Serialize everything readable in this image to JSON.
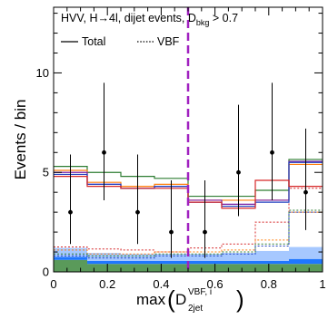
{
  "chart_data": {
    "type": "histogram",
    "annotation": {
      "line1": "HVV, H→4l, dijet events, D",
      "line1_sub": "bkg",
      "line1_tail": " > 0.7"
    },
    "legend": [
      {
        "label": "Total",
        "style": "solid"
      },
      {
        "label": "VBF",
        "style": "dotted"
      }
    ],
    "ylabel": "Events / bin",
    "xlabel": {
      "prefix": "max",
      "symbol": "D",
      "sub": "2jet",
      "sup": "VBF, i"
    },
    "xlim": [
      0,
      1
    ],
    "ylim": [
      0,
      13.3
    ],
    "x_ticks": [
      "0",
      "0.2",
      "0.4",
      "0.6",
      "0.8",
      "1"
    ],
    "y_ticks": [
      "0",
      "5",
      "10"
    ],
    "bin_edges": [
      0,
      0.125,
      0.25,
      0.375,
      0.5,
      0.625,
      0.75,
      0.875,
      1.0
    ],
    "stacked_fills": [
      {
        "color": "#5a9a5a",
        "values": [
          0.6,
          0.4,
          0.4,
          0.4,
          0.4,
          0.4,
          0.4,
          0.4
        ]
      },
      {
        "color": "#1f77ff",
        "values": [
          0.15,
          0.15,
          0.15,
          0.15,
          0.15,
          0.15,
          0.15,
          0.25
        ]
      },
      {
        "color": "#a6c8ff",
        "values": [
          0.45,
          0.4,
          0.35,
          0.35,
          0.35,
          0.4,
          0.5,
          0.6
        ]
      }
    ],
    "solid_lines": [
      {
        "color": "#2e7d32",
        "values": [
          5.3,
          5.0,
          4.8,
          4.7,
          3.8,
          3.8,
          4.1,
          5.65
        ]
      },
      {
        "color": "#ff7f0e",
        "values": [
          5.1,
          4.5,
          4.3,
          4.4,
          3.6,
          3.6,
          3.6,
          5.4
        ]
      },
      {
        "color": "#7b1fa2",
        "values": [
          5.0,
          4.4,
          4.2,
          4.3,
          3.6,
          3.4,
          3.6,
          5.55
        ]
      },
      {
        "color": "#1f3fbf",
        "values": [
          4.9,
          4.4,
          4.2,
          4.3,
          3.5,
          3.3,
          3.5,
          5.5
        ]
      },
      {
        "color": "#d62728",
        "values": [
          4.8,
          4.3,
          4.2,
          4.2,
          3.5,
          3.2,
          4.6,
          4.3
        ]
      }
    ],
    "dotted_lines": [
      {
        "color": "#d62728",
        "values": [
          1.25,
          1.15,
          1.1,
          1.0,
          1.2,
          1.4,
          2.5,
          4.2
        ]
      },
      {
        "color": "#ff7f0e",
        "values": [
          1.1,
          0.9,
          0.9,
          1.0,
          1.0,
          1.1,
          1.6,
          3.0
        ]
      },
      {
        "color": "#2e7d32",
        "values": [
          0.9,
          0.8,
          0.8,
          0.9,
          0.9,
          1.0,
          1.4,
          3.1
        ]
      },
      {
        "color": "#1f3fbf",
        "values": [
          0.8,
          0.7,
          0.7,
          0.8,
          0.8,
          0.9,
          1.3,
          3.0
        ]
      }
    ],
    "data_points": [
      {
        "x": 0.0625,
        "y": 3,
        "err_lo": 1.6,
        "err_hi": 2.9
      },
      {
        "x": 0.1875,
        "y": 6,
        "err_lo": 2.4,
        "err_hi": 3.5
      },
      {
        "x": 0.3125,
        "y": 3,
        "err_lo": 1.6,
        "err_hi": 2.9
      },
      {
        "x": 0.4375,
        "y": 2,
        "err_lo": 1.3,
        "err_hi": 2.6
      },
      {
        "x": 0.5625,
        "y": 2,
        "err_lo": 1.3,
        "err_hi": 2.6
      },
      {
        "x": 0.6875,
        "y": 5,
        "err_lo": 2.2,
        "err_hi": 3.4
      },
      {
        "x": 0.8125,
        "y": 6,
        "err_lo": 2.4,
        "err_hi": 3.5
      },
      {
        "x": 0.9375,
        "y": 4,
        "err_lo": 1.9,
        "err_hi": 3.2
      }
    ],
    "cut_line": {
      "x": 0.5,
      "color": "#a020c0"
    }
  }
}
